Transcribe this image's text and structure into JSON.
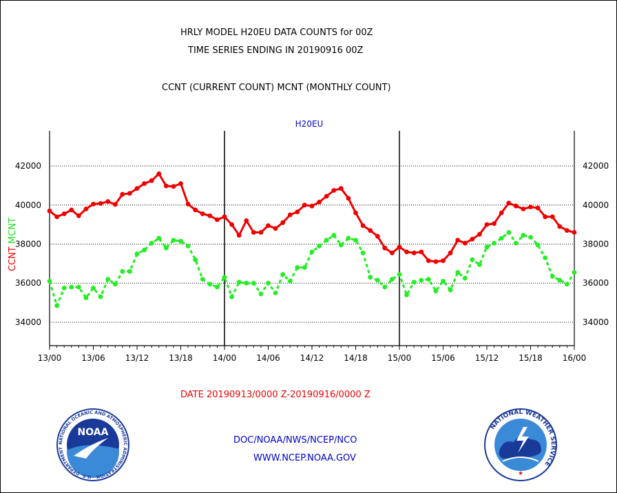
{
  "header": {
    "title_line1": "HRLY MODEL H20EU DATA COUNTS for 00Z",
    "title_line2": "TIME SERIES ENDING IN 20190916 00Z",
    "subtitle": "CCNT (CURRENT COUNT) MCNT (MONTHLY COUNT)"
  },
  "footer": {
    "date_range": "DATE 20190913/0000 Z-20190916/0000 Z",
    "org": "DOC/NOAA/NWS/NCEP/NCO",
    "url": "WWW.NCEP.NOAA.GOV"
  },
  "logos": {
    "left": {
      "text": "NOAA",
      "ring_text": "NATIONAL OCEANIC AND ATMOSPHERIC ADMINISTRATION · U.S. DEPARTMENT OF COMMERCE ·"
    },
    "right": {
      "ring_text": "NATIONAL WEATHER SERVICE"
    }
  },
  "colors": {
    "ccnt": "#ee0000",
    "mcnt": "#22ee22",
    "label_blue": "#0000cc",
    "date_red": "#ee0000"
  },
  "chart_data": {
    "type": "line",
    "title": "H20EU",
    "ylabel_parts": [
      "CCNT",
      "MCNT"
    ],
    "x_ticks": [
      "13/00",
      "13/06",
      "13/12",
      "13/18",
      "14/00",
      "14/06",
      "14/12",
      "14/18",
      "15/00",
      "15/06",
      "15/12",
      "15/18",
      "16/00"
    ],
    "y_ticks": [
      "34000",
      "36000",
      "38000",
      "40000",
      "42000"
    ],
    "ylim": [
      32800,
      43800
    ],
    "xlim": [
      0,
      72
    ],
    "grid": true,
    "x_hours": [
      0,
      1,
      2,
      3,
      4,
      5,
      6,
      7,
      8,
      9,
      10,
      11,
      12,
      13,
      14,
      15,
      16,
      17,
      18,
      19,
      20,
      21,
      22,
      23,
      24,
      25,
      26,
      27,
      28,
      29,
      30,
      31,
      32,
      33,
      34,
      35,
      36,
      37,
      38,
      39,
      40,
      41,
      42,
      43,
      44,
      45,
      46,
      47,
      48,
      49,
      50,
      51,
      52,
      53,
      54,
      55,
      56,
      57,
      58,
      59,
      60,
      61,
      62,
      63,
      64,
      65,
      66,
      67,
      68,
      69,
      70,
      71,
      72
    ],
    "series": [
      {
        "name": "CCNT",
        "values": [
          39700,
          39400,
          39550,
          39750,
          39450,
          39800,
          40050,
          40080,
          40180,
          40030,
          40550,
          40600,
          40850,
          41100,
          41250,
          41600,
          40980,
          40950,
          41100,
          40050,
          39750,
          39550,
          39450,
          39250,
          39400,
          39000,
          38450,
          39200,
          38600,
          38600,
          38950,
          38800,
          39100,
          39500,
          39650,
          40000,
          39950,
          40150,
          40450,
          40750,
          40850,
          40350,
          39600,
          38950,
          38700,
          38400,
          37800,
          37550,
          37850,
          37600,
          37550,
          37600,
          37150,
          37100,
          37150,
          37550,
          38200,
          38050,
          38250,
          38500,
          39000,
          39050,
          39600,
          40100,
          39950,
          39800,
          39900,
          39850,
          39400,
          39400,
          38900,
          38700,
          38600
        ]
      },
      {
        "name": "MCNT",
        "values": [
          36100,
          34850,
          35750,
          35800,
          35800,
          35250,
          35750,
          35300,
          36200,
          35950,
          36600,
          36600,
          37500,
          37700,
          38050,
          38300,
          37800,
          38200,
          38150,
          37900,
          37200,
          36200,
          35950,
          35800,
          36300,
          35300,
          36050,
          36000,
          36000,
          35450,
          36000,
          35500,
          36450,
          36100,
          36800,
          36800,
          37600,
          37900,
          38200,
          38450,
          37950,
          38300,
          38200,
          37550,
          36300,
          36150,
          35800,
          36200,
          36450,
          35400,
          36050,
          36150,
          36200,
          35600,
          36100,
          35650,
          36550,
          36250,
          37200,
          36950,
          37850,
          38050,
          38300,
          38600,
          38050,
          38450,
          38350,
          37950,
          37300,
          36350,
          36150,
          35950,
          36550
        ]
      }
    ]
  }
}
